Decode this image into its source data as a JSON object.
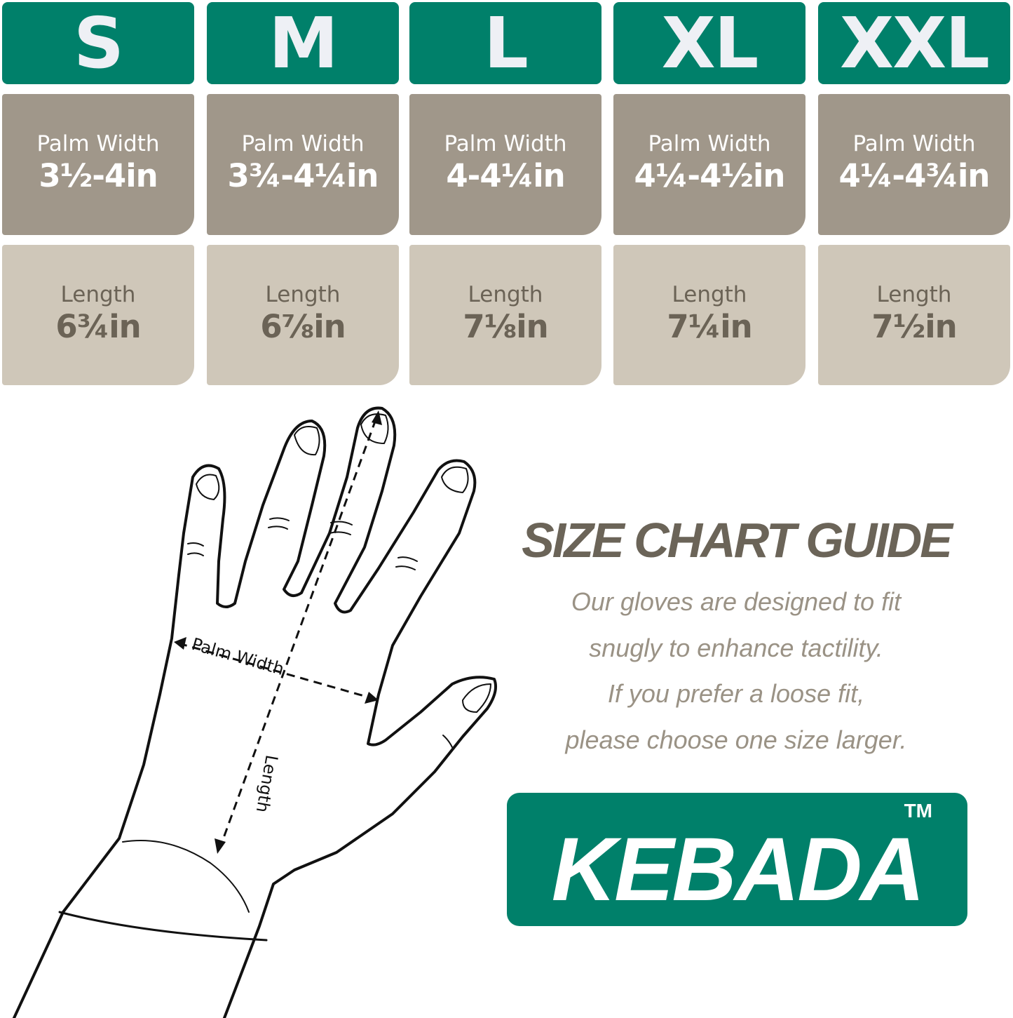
{
  "colors": {
    "header_green": "#00806a",
    "palm_cell": "#a0978a",
    "length_cell": "#cfc7b9",
    "title_text": "#6b6458",
    "description_text": "#9a9285"
  },
  "sizes": [
    {
      "size": "S",
      "palm_label": "Palm Width",
      "palm_value": "3½-4in",
      "length_label": "Length",
      "length_value": "6¾in"
    },
    {
      "size": "M",
      "palm_label": "Palm Width",
      "palm_value": "3¾-4¼in",
      "length_label": "Length",
      "length_value": "6⅞in"
    },
    {
      "size": "L",
      "palm_label": "Palm Width",
      "palm_value": "4-4¼in",
      "length_label": "Length",
      "length_value": "7⅛in"
    },
    {
      "size": "XL",
      "palm_label": "Palm Width",
      "palm_value": "4¼-4½in",
      "length_label": "Length",
      "length_value": "7¼in"
    },
    {
      "size": "XXL",
      "palm_label": "Palm Width",
      "palm_value": "4¼-4¾in",
      "length_label": "Length",
      "length_value": "7½in"
    }
  ],
  "diagram": {
    "palm_width_label": "Palm Width",
    "length_label": "Length"
  },
  "guide": {
    "title": "SIZE CHART GUIDE",
    "lines": [
      "Our gloves are designed to fit",
      "snugly to enhance tactility.",
      "If you prefer a loose fit,",
      "please choose one size larger."
    ]
  },
  "brand": {
    "name": "KEBADA",
    "trademark": "TM"
  }
}
